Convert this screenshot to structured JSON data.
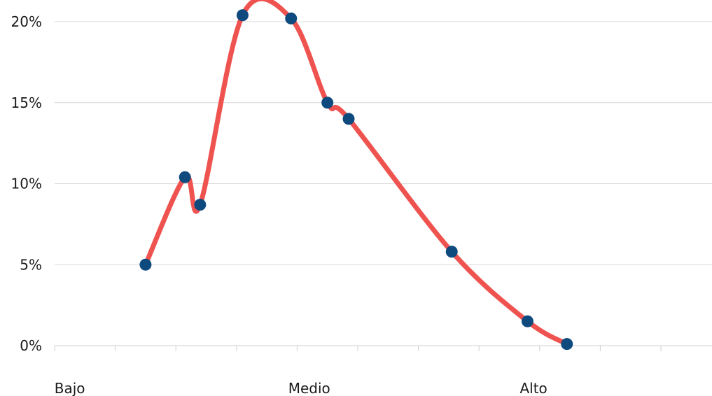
{
  "chart_data": {
    "type": "line",
    "title": "",
    "xlabel": "",
    "ylabel": "",
    "xlim": [
      0,
      11
    ],
    "ylim": [
      0,
      20
    ],
    "y_ticks": [
      0,
      5,
      10,
      15,
      20
    ],
    "y_tick_labels": [
      "0%",
      "5%",
      "10%",
      "15%",
      "20%"
    ],
    "x_tick_count": 12,
    "category_labels": [
      {
        "label": "Bajo",
        "x": 0.25
      },
      {
        "label": "Medio",
        "x": 4.2
      },
      {
        "label": "Alto",
        "x": 7.9
      }
    ],
    "grid": true,
    "legend": "none",
    "series": [
      {
        "color": "#ef5350",
        "marker_color": "#0e4a7e",
        "smooth": true,
        "points": [
          {
            "x": 1.5,
            "y": 5.0
          },
          {
            "x": 2.15,
            "y": 10.4
          },
          {
            "x": 2.4,
            "y": 8.7
          },
          {
            "x": 3.1,
            "y": 20.4
          },
          {
            "x": 3.9,
            "y": 20.2
          },
          {
            "x": 4.5,
            "y": 15.0
          },
          {
            "x": 4.85,
            "y": 14.0
          },
          {
            "x": 6.55,
            "y": 5.8
          },
          {
            "x": 7.8,
            "y": 1.5
          },
          {
            "x": 8.45,
            "y": 0.1
          }
        ]
      }
    ]
  }
}
